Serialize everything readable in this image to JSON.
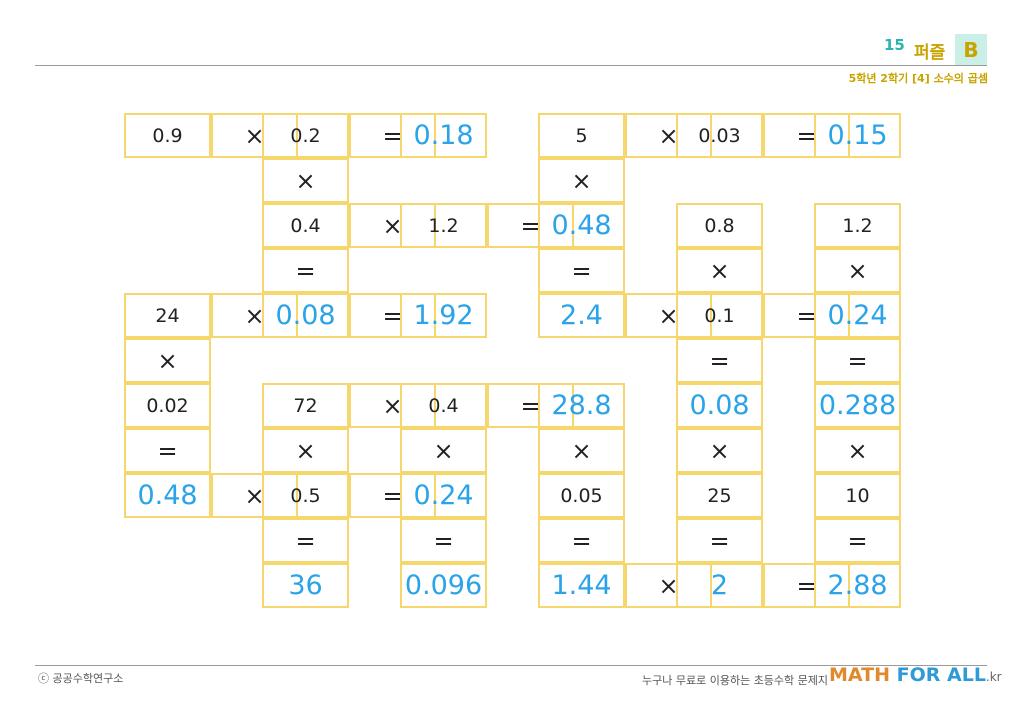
{
  "header": {
    "number": "15",
    "title": "퍼즐",
    "badge": "B",
    "subtitle": "5학년 2학기 [4] 소수의 곱셈"
  },
  "footer": {
    "copyright": "ⓒ 공공수학연구소",
    "tagline": "누구나 무료로 이용하는 초등수학 문제지",
    "brand_math": "MATH",
    "brand_forall": "FOR ALL",
    "brand_kr": ".kr"
  },
  "puzzle": {
    "r0": {
      "c0": "0.9",
      "c1": "×",
      "c2": "0.2",
      "c3": "=",
      "c4": "0.18",
      "c6": "5",
      "c7": "×",
      "c8": "0.03",
      "c9": "=",
      "c10": "0.15"
    },
    "r1": {
      "c2": "×",
      "c6": "×"
    },
    "r2": {
      "c2": "0.4",
      "c3": "×",
      "c4": "1.2",
      "c5": "=",
      "c6": "0.48",
      "c8": "0.8",
      "c10": "1.2"
    },
    "r3": {
      "c2": "=",
      "c6": "=",
      "c8": "×",
      "c10": "×"
    },
    "r4": {
      "c0": "24",
      "c1": "×",
      "c2": "0.08",
      "c3": "=",
      "c4": "1.92",
      "c6": "2.4",
      "c7": "×",
      "c8": "0.1",
      "c9": "=",
      "c10": "0.24"
    },
    "r5": {
      "c0": "×",
      "c8": "=",
      "c10": "="
    },
    "r6": {
      "c0": "0.02",
      "c2": "72",
      "c3": "×",
      "c4": "0.4",
      "c5": "=",
      "c6": "28.8",
      "c8": "0.08",
      "c10": "0.288"
    },
    "r7": {
      "c0": "=",
      "c2": "×",
      "c4": "×",
      "c6": "×",
      "c8": "×",
      "c10": "×"
    },
    "r8": {
      "c0": "0.48",
      "c1": "×",
      "c2": "0.5",
      "c3": "=",
      "c4": "0.24",
      "c6": "0.05",
      "c8": "25",
      "c10": "10"
    },
    "r9": {
      "c2": "=",
      "c4": "=",
      "c6": "=",
      "c8": "=",
      "c10": "="
    },
    "r10": {
      "c2": "36",
      "c4": "0.096",
      "c6": "1.44",
      "c7": "×",
      "c8": "2",
      "c9": "=",
      "c10": "2.88"
    }
  }
}
